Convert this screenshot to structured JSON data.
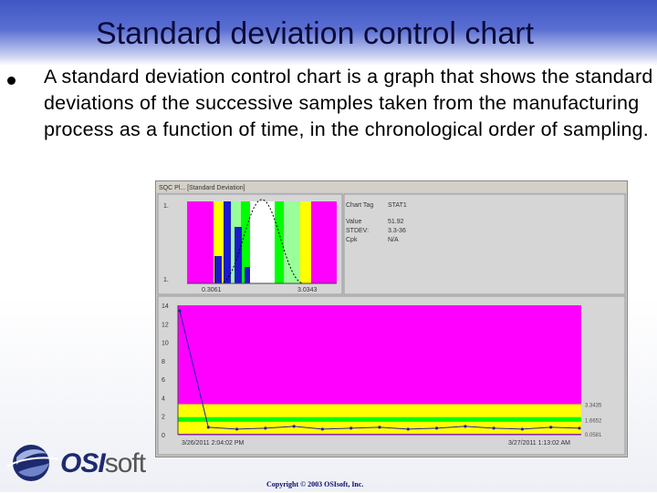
{
  "slide": {
    "title": "Standard deviation control chart",
    "bullet": "A standard deviation control chart is a graph that shows the standard deviations of the successive samples taken from the manufacturing process as a function of time, in the chronological order of sampling.",
    "copyright": "Copyright © 2003 OSIsoft, Inc.",
    "logo_bold": "OSI",
    "logo_light": "soft"
  },
  "app": {
    "window_title": "SQC Pl... [Standard Deviation]",
    "hist": {
      "y_top": "1.",
      "y_bottom": "1.",
      "x_left": "0.3061",
      "x_right": "3.0343"
    },
    "info": {
      "chart_tag_label": "Chart Tag",
      "chart_tag_value": "STAT1",
      "value_label": "Value",
      "value": "51.92",
      "stdev_label": "STDEV:",
      "stdev": "3.3-36",
      "cpk_label": "Cpk",
      "cpk": "N/A"
    },
    "control": {
      "y_ticks": [
        "14",
        "12",
        "10",
        "8",
        "6",
        "4",
        "2",
        "0"
      ],
      "x_start": "3/26/2011 2:04:02 PM",
      "x_end": "3/27/2011 1:13:02 AM",
      "limit_labels": [
        "3.3435",
        "1.6652",
        "0.0581"
      ]
    }
  },
  "chart_data": {
    "type": "line",
    "title": "",
    "xlabel": "",
    "ylabel": "",
    "ylim": [
      0,
      14
    ],
    "series": [
      {
        "values": [
          13.4,
          0.8,
          0.6,
          0.7,
          0.9,
          0.6,
          0.7,
          0.8,
          0.6,
          0.7,
          0.9,
          0.7,
          0.6,
          0.8,
          0.7
        ]
      }
    ],
    "colors": {
      "background": "#ff00ff",
      "limits": "#ffff00",
      "center": "#00ff00",
      "line": "#2020b0"
    }
  }
}
